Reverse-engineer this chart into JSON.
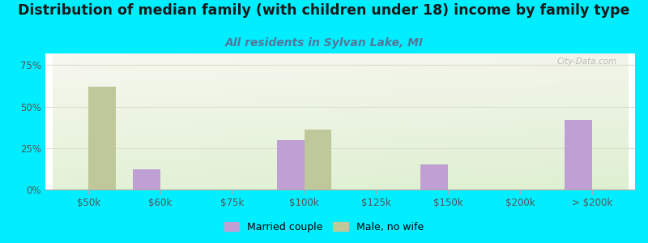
{
  "title": "Distribution of median family (with children under 18) income by family type",
  "subtitle": "All residents in Sylvan Lake, MI",
  "categories": [
    "$50k",
    "$60k",
    "$75k",
    "$100k",
    "$125k",
    "$150k",
    "$200k",
    "> $200k"
  ],
  "married_couple": [
    0,
    12,
    0,
    30,
    0,
    15,
    0,
    42
  ],
  "male_no_wife": [
    62,
    0,
    0,
    36,
    0,
    0,
    0,
    0
  ],
  "married_color": "#c0a0d4",
  "male_color": "#bec89a",
  "background_outer": "#00eeff",
  "yticks": [
    0,
    25,
    50,
    75
  ],
  "ylim": [
    0,
    82
  ],
  "bar_width": 0.38,
  "title_fontsize": 12.5,
  "subtitle_fontsize": 10,
  "watermark": "City-Data.com"
}
